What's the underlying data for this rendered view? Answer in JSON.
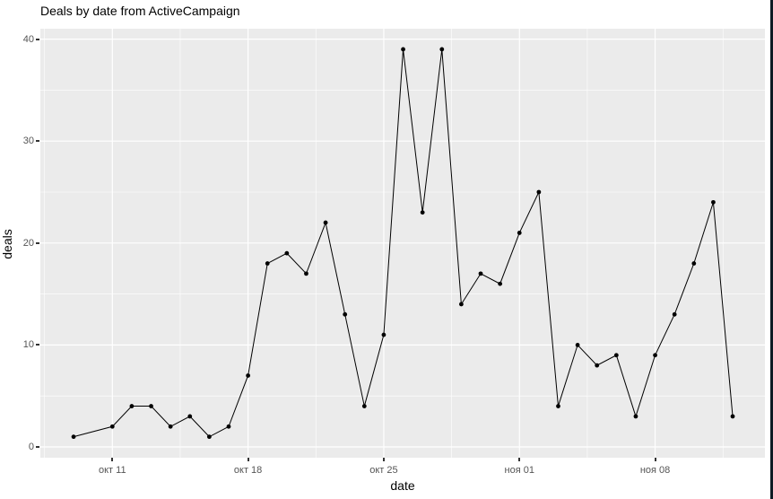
{
  "chart": {
    "title": "Deals by date from ActiveCampaign",
    "x_label": "date",
    "y_label": "deals",
    "x_ticks": [
      "окт 11",
      "окт 18",
      "окт 25",
      "ноя 01",
      "ноя 08"
    ],
    "y_ticks": [
      "0",
      "10",
      "20",
      "30",
      "40"
    ],
    "colors": {
      "panel_bg": "#EBEBEB",
      "grid": "#FFFFFF",
      "tick_text": "#555555",
      "tick_mark": "#333333",
      "series": "#000000",
      "title_text": "#000000",
      "window_border": "#0e1b24"
    }
  },
  "chart_data": {
    "type": "line",
    "title": "Deals by date from ActiveCampaign",
    "xlabel": "date",
    "ylabel": "deals",
    "ylim": [
      0,
      40
    ],
    "grid": "on",
    "legend": "none",
    "x_tick_labels": [
      "окт 11",
      "окт 18",
      "окт 25",
      "ноя 01",
      "ноя 08"
    ],
    "y_major_gridlines": [
      0,
      10,
      20,
      30,
      40
    ],
    "y_minor_gridlines": [
      5,
      15,
      25,
      35
    ],
    "series_name": "deals",
    "points": [
      {
        "date": "окт 09",
        "deals": 1
      },
      {
        "date": "окт 11",
        "deals": 2
      },
      {
        "date": "окт 12",
        "deals": 4
      },
      {
        "date": "окт 13",
        "deals": 4
      },
      {
        "date": "окт 14",
        "deals": 2
      },
      {
        "date": "окт 15",
        "deals": 3
      },
      {
        "date": "окт 16",
        "deals": 1
      },
      {
        "date": "окт 17",
        "deals": 2
      },
      {
        "date": "окт 18",
        "deals": 7
      },
      {
        "date": "окт 19",
        "deals": 18
      },
      {
        "date": "окт 20",
        "deals": 19
      },
      {
        "date": "окт 21",
        "deals": 17
      },
      {
        "date": "окт 22",
        "deals": 22
      },
      {
        "date": "окт 23",
        "deals": 13
      },
      {
        "date": "окт 24",
        "deals": 4
      },
      {
        "date": "окт 25",
        "deals": 11
      },
      {
        "date": "окт 26",
        "deals": 39
      },
      {
        "date": "окт 27",
        "deals": 23
      },
      {
        "date": "окт 28",
        "deals": 39
      },
      {
        "date": "окт 29",
        "deals": 14
      },
      {
        "date": "окт 30",
        "deals": 17
      },
      {
        "date": "окт 31",
        "deals": 16
      },
      {
        "date": "ноя 01",
        "deals": 21
      },
      {
        "date": "ноя 02",
        "deals": 25
      },
      {
        "date": "ноя 03",
        "deals": 4
      },
      {
        "date": "ноя 04",
        "deals": 10
      },
      {
        "date": "ноя 05",
        "deals": 8
      },
      {
        "date": "ноя 06",
        "deals": 9
      },
      {
        "date": "ноя 07",
        "deals": 3
      },
      {
        "date": "ноя 08",
        "deals": 9
      },
      {
        "date": "ноя 09",
        "deals": 13
      },
      {
        "date": "ноя 10",
        "deals": 18
      },
      {
        "date": "ноя 11",
        "deals": 24
      },
      {
        "date": "ноя 12",
        "deals": 3
      }
    ]
  }
}
